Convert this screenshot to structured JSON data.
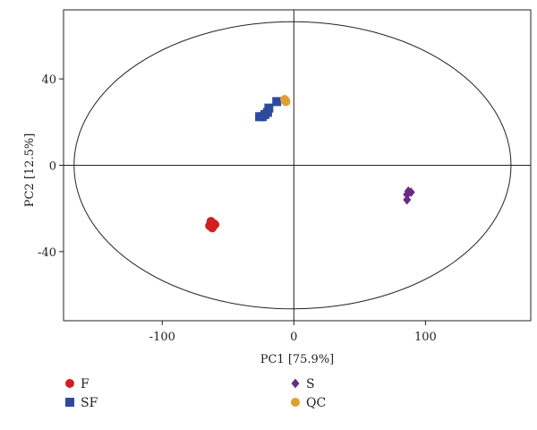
{
  "chart_data": {
    "type": "scatter",
    "title": "",
    "xlabel": "PC1 [75.9%]",
    "ylabel": "PC2 [12.5%]",
    "xlim": [
      -175,
      180
    ],
    "ylim": [
      -72,
      72
    ],
    "xticks": [
      -100,
      0,
      100
    ],
    "yticks": [
      -40,
      0,
      40
    ],
    "grid": false,
    "zero_lines": true,
    "confidence_ellipse": {
      "center": [
        -1,
        0
      ],
      "radius_x": 166,
      "radius_y": 66.5
    },
    "legend_position": "bottom",
    "series": [
      {
        "name": "F",
        "marker": "circle",
        "color": "#d11f1f",
        "points": [
          [
            -63,
            -26
          ],
          [
            -61,
            -27
          ],
          [
            -64,
            -28
          ],
          [
            -62,
            -29
          ],
          [
            -60,
            -27.5
          ],
          [
            -63,
            -27
          ]
        ]
      },
      {
        "name": "S",
        "marker": "diamond",
        "color": "#6a2b86",
        "points": [
          [
            87,
            -12
          ],
          [
            89,
            -12.5
          ],
          [
            86,
            -13.5
          ],
          [
            86,
            -16
          ]
        ]
      },
      {
        "name": "SF",
        "marker": "square",
        "color": "#2e4a9e",
        "points": [
          [
            -26,
            22.5
          ],
          [
            -24,
            22.5
          ],
          [
            -22,
            23.5
          ],
          [
            -20,
            24.5
          ],
          [
            -19,
            26.5
          ],
          [
            -13,
            29.5
          ]
        ]
      },
      {
        "name": "QC",
        "marker": "circle",
        "color": "#e0a030",
        "points": [
          [
            -7,
            30.5
          ],
          [
            -6,
            29.5
          ],
          [
            -6.5,
            30
          ]
        ]
      }
    ]
  }
}
